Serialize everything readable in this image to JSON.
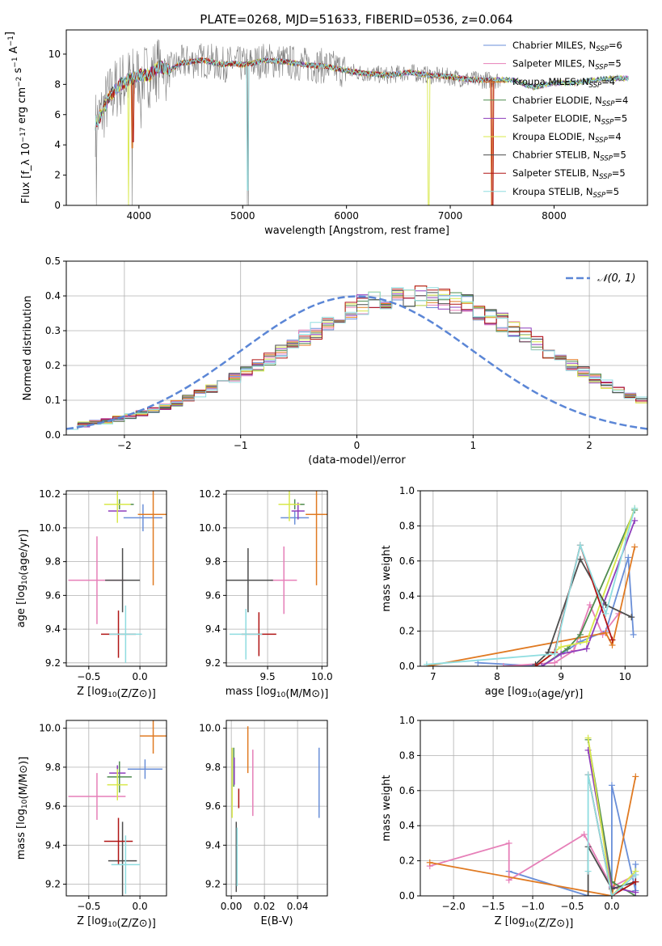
{
  "figure_title": "PLATE=0268, MJD=51633, FIBERID=0536, z=0.064",
  "colors": {
    "Chabrier MILES": "#6a8fd8",
    "Salpeter MILES": "#e67fb8",
    "Kroupa MILES": "#e07a22",
    "Chabrier ELODIE": "#4f8c4f",
    "Salpeter ELODIE": "#8e3dbb",
    "Kroupa ELODIE": "#d8e84a",
    "Chabrier STELIB": "#4d4d4d",
    "Salpeter STELIB": "#b01414",
    "Kroupa STELIB": "#8fdde0",
    "data": "#808080",
    "normal": "#5b86d6"
  },
  "chart_data": [
    {
      "id": "spectrum",
      "type": "line",
      "title": "PLATE=0268, MJD=51633, FIBERID=0536, z=0.064",
      "xlabel": "wavelength [Angstrom, rest frame]",
      "ylabel": "Flux [f_λ 10^-17 erg cm^-2 s^-1 A^-1]",
      "xlim": [
        3300,
        8900
      ],
      "ylim": [
        0,
        11.6
      ],
      "xticks": [
        4000,
        5000,
        6000,
        7000,
        8000
      ],
      "yticks": [
        0,
        2,
        4,
        6,
        8,
        10
      ],
      "legend_position": "upper right",
      "legend": [
        {
          "name": "Chabrier MILES",
          "label": "Chabrier MILES, N",
          "sub": "SSP",
          "tail": "=6"
        },
        {
          "name": "Salpeter MILES",
          "label": "Salpeter MILES, N",
          "sub": "SSP",
          "tail": "=5"
        },
        {
          "name": "Kroupa MILES",
          "label": "Kroupa MILES, N",
          "sub": "SSP",
          "tail": "=4"
        },
        {
          "name": "Chabrier ELODIE",
          "label": "Chabrier ELODIE, N",
          "sub": "SSP",
          "tail": "=4"
        },
        {
          "name": "Salpeter ELODIE",
          "label": "Salpeter ELODIE, N",
          "sub": "SSP",
          "tail": "=5"
        },
        {
          "name": "Kroupa ELODIE",
          "label": "Kroupa ELODIE, N",
          "sub": "SSP",
          "tail": "=4"
        },
        {
          "name": "Chabrier STELIB",
          "label": "Chabrier STELIB, N",
          "sub": "SSP",
          "tail": "=5"
        },
        {
          "name": "Salpeter STELIB",
          "label": "Salpeter STELIB, N",
          "sub": "SSP",
          "tail": "=5"
        },
        {
          "name": "Kroupa STELIB",
          "label": "Kroupa STELIB, N",
          "sub": "SSP",
          "tail": "=5"
        }
      ],
      "continuum": {
        "x": [
          3580,
          3650,
          3700,
          3800,
          3900,
          4000,
          4100,
          4200,
          4300,
          4400,
          4500,
          4600,
          4700,
          4800,
          4900,
          5000,
          5100,
          5200,
          5400,
          5600,
          5800,
          6000,
          6200,
          6400,
          6600,
          6800,
          7000,
          7200,
          7400,
          7600,
          7800,
          8000,
          8200,
          8400,
          8600,
          8720
        ],
        "y": [
          5.4,
          6.2,
          7.0,
          7.9,
          8.3,
          8.6,
          8.6,
          9.2,
          8.9,
          9.4,
          9.5,
          9.6,
          9.5,
          9.3,
          9.4,
          9.3,
          9.4,
          9.6,
          9.5,
          9.3,
          9.2,
          8.9,
          8.7,
          8.6,
          8.8,
          8.6,
          8.5,
          8.3,
          8.3,
          8.3,
          7.8,
          8.1,
          8.1,
          8.3,
          8.4,
          8.4
        ]
      },
      "data_line": {
        "x_range": [
          3580,
          7480
        ],
        "dips": [
          {
            "x": 3590,
            "y": 0.0
          },
          {
            "x": 3935,
            "y": 0.0
          },
          {
            "x": 4020,
            "y": 5.1
          },
          {
            "x": 4260,
            "y": 6.9
          },
          {
            "x": 5045,
            "y": 0.0
          },
          {
            "x": 5055,
            "y": 0.0
          }
        ]
      },
      "model_dips": [
        {
          "x": 3900,
          "y": 0.0,
          "series": "Kroupa ELODIE"
        },
        {
          "x": 3935,
          "y": 3.8,
          "series": "Kroupa MILES"
        },
        {
          "x": 3945,
          "y": 4.2,
          "series": "Salpeter STELIB"
        },
        {
          "x": 5045,
          "y": 1.0,
          "series": "Kroupa STELIB"
        },
        {
          "x": 6795,
          "y": 0.0,
          "series": "Kroupa ELODIE"
        },
        {
          "x": 7400,
          "y": 0.0,
          "series": "Kroupa MILES"
        },
        {
          "x": 7410,
          "y": 0.0,
          "series": "Salpeter STELIB"
        }
      ]
    },
    {
      "id": "residual_hist",
      "type": "bar",
      "xlabel": "(data-model)/error",
      "ylabel": "Normed distribution",
      "xlim": [
        -2.5,
        2.5
      ],
      "ylim": [
        0,
        0.5
      ],
      "xticks": [
        -2,
        -1,
        0,
        1,
        2
      ],
      "yticks": [
        0.0,
        0.1,
        0.2,
        0.3,
        0.4,
        0.5
      ],
      "bin_width": 0.1,
      "bin_start": -2.5,
      "envelope": [
        0.025,
        0.029,
        0.034,
        0.04,
        0.047,
        0.054,
        0.062,
        0.071,
        0.081,
        0.092,
        0.105,
        0.119,
        0.134,
        0.149,
        0.165,
        0.183,
        0.2,
        0.218,
        0.239,
        0.26,
        0.28,
        0.302,
        0.321,
        0.339,
        0.355,
        0.371,
        0.382,
        0.392,
        0.397,
        0.4,
        0.4,
        0.398,
        0.392,
        0.383,
        0.371,
        0.357,
        0.341,
        0.323,
        0.302,
        0.283,
        0.261,
        0.241,
        0.22,
        0.2,
        0.181,
        0.163,
        0.146,
        0.131,
        0.114,
        0.101,
        0.087
      ],
      "legend": [
        {
          "name": "N(0,1)",
          "label": "𝒩(0, 1)"
        }
      ],
      "legend_position": "upper right"
    },
    {
      "id": "age_vs_Z",
      "type": "scatter",
      "xlabel": "Z [log10(Z/Z⊙)]",
      "ylabel": "age [log10(age/yr)]",
      "xlim": [
        -0.72,
        0.26
      ],
      "ylim": [
        9.18,
        10.22
      ],
      "xticks": [
        -0.5,
        0.0
      ],
      "yticks": [
        9.2,
        9.4,
        9.6,
        9.8,
        10.0,
        10.2
      ],
      "points": [
        {
          "series": "Chabrier MILES",
          "x": 0.03,
          "y": 10.06,
          "xerr": 0.19,
          "yerr": 0.08
        },
        {
          "series": "Salpeter MILES",
          "x": -0.42,
          "y": 9.69,
          "xerr": 0.28,
          "yerr": 0.26
        },
        {
          "series": "Kroupa MILES",
          "x": 0.13,
          "y": 10.08,
          "xerr": 0.15,
          "yerr": 0.42
        },
        {
          "series": "Chabrier ELODIE",
          "x": -0.2,
          "y": 10.14,
          "xerr": 0.14,
          "yerr": 0.03
        },
        {
          "series": "Salpeter ELODIE",
          "x": -0.22,
          "y": 10.1,
          "xerr": 0.09,
          "yerr": 0.03
        },
        {
          "series": "Kroupa ELODIE",
          "x": -0.22,
          "y": 10.14,
          "xerr": 0.13,
          "yerr": 0.11
        },
        {
          "series": "Chabrier STELIB",
          "x": -0.17,
          "y": 9.69,
          "xerr": 0.17,
          "yerr": 0.19
        },
        {
          "series": "Salpeter STELIB",
          "x": -0.21,
          "y": 9.37,
          "xerr": 0.17,
          "yerr": 0.14
        },
        {
          "series": "Kroupa STELIB",
          "x": -0.14,
          "y": 9.37,
          "xerr": 0.16,
          "yerr": 0.17
        }
      ]
    },
    {
      "id": "age_vs_mass",
      "type": "scatter",
      "xlabel": "mass [log10(M/M⊙)]",
      "ylabel": "",
      "xlim": [
        9.12,
        10.05
      ],
      "ylim": [
        9.18,
        10.22
      ],
      "xticks": [
        9.5,
        10.0
      ],
      "yticks": [
        9.2,
        9.4,
        9.6,
        9.8,
        10.0,
        10.2
      ],
      "points": [
        {
          "series": "Chabrier MILES",
          "x": 9.75,
          "y": 10.06,
          "xerr": 0.13,
          "yerr": 0.04
        },
        {
          "series": "Salpeter MILES",
          "x": 9.65,
          "y": 9.69,
          "xerr": 0.12,
          "yerr": 0.2
        },
        {
          "series": "Kroupa MILES",
          "x": 9.95,
          "y": 10.08,
          "xerr": 0.1,
          "yerr": 0.42
        },
        {
          "series": "Chabrier ELODIE",
          "x": 9.75,
          "y": 10.14,
          "xerr": 0.09,
          "yerr": 0.03
        },
        {
          "series": "Salpeter ELODIE",
          "x": 9.78,
          "y": 10.1,
          "xerr": 0.06,
          "yerr": 0.05
        },
        {
          "series": "Kroupa ELODIE",
          "x": 9.7,
          "y": 10.14,
          "xerr": 0.1,
          "yerr": 0.1
        },
        {
          "series": "Chabrier STELIB",
          "x": 9.32,
          "y": 9.69,
          "xerr": 0.23,
          "yerr": 0.19
        },
        {
          "series": "Salpeter STELIB",
          "x": 9.42,
          "y": 9.37,
          "xerr": 0.16,
          "yerr": 0.13
        },
        {
          "series": "Kroupa STELIB",
          "x": 9.3,
          "y": 9.37,
          "xerr": 0.15,
          "yerr": 0.15
        }
      ]
    },
    {
      "id": "mass_weight_vs_age",
      "type": "line",
      "xlabel": "age [log10(age/yr)]",
      "ylabel": "mass weight",
      "xlim": [
        6.8,
        10.35
      ],
      "ylim": [
        0,
        1.0
      ],
      "xticks": [
        7,
        8,
        9,
        10
      ],
      "yticks": [
        0.0,
        0.2,
        0.4,
        0.6,
        0.8,
        1.0
      ],
      "series": [
        {
          "name": "Chabrier MILES",
          "x": [
            7.7,
            8.7,
            9.3,
            9.7,
            10.05,
            10.13
          ],
          "y": [
            0.02,
            0.0,
            0.14,
            0.2,
            0.62,
            0.18
          ]
        },
        {
          "name": "Salpeter MILES",
          "x": [
            8.1,
            8.9,
            9.2,
            9.45,
            9.65,
            9.9
          ],
          "y": [
            0.0,
            0.02,
            0.09,
            0.35,
            0.18,
            0.3
          ]
        },
        {
          "name": "Kroupa MILES",
          "x": [
            6.9,
            9.7,
            9.8,
            10.15
          ],
          "y": [
            0.0,
            0.19,
            0.12,
            0.68
          ]
        },
        {
          "name": "Chabrier ELODIE",
          "x": [
            8.7,
            9.1,
            9.3,
            10.15
          ],
          "y": [
            0.0,
            0.1,
            0.18,
            0.89
          ]
        },
        {
          "name": "Salpeter ELODIE",
          "x": [
            8.7,
            9.0,
            9.4,
            10.15
          ],
          "y": [
            0.0,
            0.07,
            0.1,
            0.83
          ]
        },
        {
          "name": "Kroupa ELODIE",
          "x": [
            8.6,
            9.0,
            9.4,
            10.15
          ],
          "y": [
            0.0,
            0.11,
            0.14,
            0.9
          ]
        },
        {
          "name": "Chabrier STELIB",
          "x": [
            8.6,
            8.8,
            9.3,
            9.7,
            10.1
          ],
          "y": [
            0.01,
            0.08,
            0.61,
            0.35,
            0.28
          ]
        },
        {
          "name": "Salpeter STELIB",
          "x": [
            8.6,
            8.9,
            9.3,
            9.8
          ],
          "y": [
            0.0,
            0.08,
            0.69,
            0.15
          ]
        },
        {
          "name": "Kroupa STELIB",
          "x": [
            6.9,
            8.9,
            9.3,
            9.7,
            10.15
          ],
          "y": [
            0.01,
            0.07,
            0.69,
            0.3,
            0.9
          ]
        }
      ]
    },
    {
      "id": "mass_vs_Z",
      "type": "scatter",
      "xlabel": "Z [log10(Z/Z⊙)]",
      "ylabel": "mass [log10(M/M⊙)]",
      "xlim": [
        -0.72,
        0.26
      ],
      "ylim": [
        9.14,
        10.04
      ],
      "xticks": [
        -0.5,
        0.0
      ],
      "yticks": [
        9.2,
        9.4,
        9.6,
        9.8,
        10.0
      ],
      "points": [
        {
          "series": "Chabrier MILES",
          "x": 0.05,
          "y": 9.79,
          "xerr": 0.17,
          "yerr": 0.05
        },
        {
          "series": "Salpeter MILES",
          "x": -0.42,
          "y": 9.65,
          "xerr": 0.28,
          "yerr": 0.12
        },
        {
          "series": "Kroupa MILES",
          "x": 0.13,
          "y": 9.96,
          "xerr": 0.13,
          "yerr": 0.09
        },
        {
          "series": "Chabrier ELODIE",
          "x": -0.2,
          "y": 9.75,
          "xerr": 0.12,
          "yerr": 0.08
        },
        {
          "series": "Salpeter ELODIE",
          "x": -0.22,
          "y": 9.77,
          "xerr": 0.08,
          "yerr": 0.04
        },
        {
          "series": "Kroupa ELODIE",
          "x": -0.22,
          "y": 9.71,
          "xerr": 0.1,
          "yerr": 0.08
        },
        {
          "series": "Chabrier STELIB",
          "x": -0.17,
          "y": 9.32,
          "xerr": 0.14,
          "yerr": 0.2
        },
        {
          "series": "Salpeter STELIB",
          "x": -0.21,
          "y": 9.42,
          "xerr": 0.14,
          "yerr": 0.12
        },
        {
          "series": "Kroupa STELIB",
          "x": -0.14,
          "y": 9.3,
          "xerr": 0.14,
          "yerr": 0.15
        }
      ]
    },
    {
      "id": "mass_vs_ebv",
      "type": "scatter",
      "xlabel": "E(B-V)",
      "ylabel": "",
      "xlim": [
        -0.003,
        0.058
      ],
      "ylim": [
        9.14,
        10.04
      ],
      "xticks": [
        0.0,
        0.02,
        0.04
      ],
      "yticks": [
        9.2,
        9.4,
        9.6,
        9.8,
        10.0
      ],
      "points": [
        {
          "series": "Chabrier MILES",
          "x": 0.053,
          "y": 9.72,
          "xerr": 0,
          "yerr": 0.18
        },
        {
          "series": "Salpeter MILES",
          "x": 0.013,
          "y": 9.72,
          "xerr": 0,
          "yerr": 0.17
        },
        {
          "series": "Kroupa MILES",
          "x": 0.01,
          "y": 9.89,
          "xerr": 0,
          "yerr": 0.12
        },
        {
          "series": "Chabrier ELODIE",
          "x": 0.0015,
          "y": 9.8,
          "xerr": 0,
          "yerr": 0.1
        },
        {
          "series": "Salpeter ELODIE",
          "x": 0.0018,
          "y": 9.78,
          "xerr": 0,
          "yerr": 0.07
        },
        {
          "series": "Kroupa ELODIE",
          "x": 0.0005,
          "y": 9.72,
          "xerr": 0,
          "yerr": 0.18
        },
        {
          "series": "Chabrier STELIB",
          "x": 0.003,
          "y": 9.34,
          "xerr": 0,
          "yerr": 0.18
        },
        {
          "series": "Salpeter STELIB",
          "x": 0.0045,
          "y": 9.64,
          "xerr": 0,
          "yerr": 0.05
        },
        {
          "series": "Kroupa STELIB",
          "x": 0.0035,
          "y": 9.34,
          "xerr": 0,
          "yerr": 0.15
        }
      ]
    },
    {
      "id": "mass_weight_vs_Z",
      "type": "line",
      "xlabel": "Z [log10(Z/Z⊙)]",
      "ylabel": "mass weight",
      "xlim": [
        -2.42,
        0.45
      ],
      "ylim": [
        0,
        1.0
      ],
      "xticks": [
        -2.0,
        -1.5,
        -1.0,
        -0.5,
        0.0
      ],
      "yticks": [
        0.0,
        0.2,
        0.4,
        0.6,
        0.8,
        1.0
      ],
      "series": [
        {
          "name": "Chabrier MILES",
          "x": [
            -1.3,
            -0.3,
            0.0,
            0.0,
            0.3,
            0.3
          ],
          "y": [
            0.14,
            0.0,
            0.0,
            0.63,
            0.03,
            0.18
          ]
        },
        {
          "name": "Salpeter MILES",
          "x": [
            -2.3,
            -1.3,
            -1.3,
            -0.35,
            0.0,
            0.3
          ],
          "y": [
            0.17,
            0.3,
            0.09,
            0.35,
            0.05,
            0.12
          ]
        },
        {
          "name": "Kroupa MILES",
          "x": [
            -2.3,
            0.0,
            0.3
          ],
          "y": [
            0.19,
            0.0,
            0.68
          ]
        },
        {
          "name": "Chabrier ELODIE",
          "x": [
            -0.3,
            0.0,
            0.3
          ],
          "y": [
            0.89,
            0.08,
            0.0
          ]
        },
        {
          "name": "Salpeter ELODIE",
          "x": [
            -0.3,
            0.0,
            0.3
          ],
          "y": [
            0.83,
            0.05,
            0.02
          ]
        },
        {
          "name": "Kroupa ELODIE",
          "x": [
            -0.3,
            0.0,
            0.3
          ],
          "y": [
            0.9,
            0.0,
            0.14
          ]
        },
        {
          "name": "Chabrier STELIB",
          "x": [
            -0.3,
            -0.3,
            0.0,
            0.3
          ],
          "y": [
            0.0,
            0.28,
            0.04,
            0.08
          ]
        },
        {
          "name": "Salpeter STELIB",
          "x": [
            -0.3,
            0.0,
            0.3
          ],
          "y": [
            0.69,
            0.0,
            0.08
          ]
        },
        {
          "name": "Kroupa STELIB",
          "x": [
            -0.3,
            -0.3,
            0.0,
            0.3
          ],
          "y": [
            0.14,
            0.69,
            0.0,
            0.12
          ]
        }
      ]
    }
  ]
}
